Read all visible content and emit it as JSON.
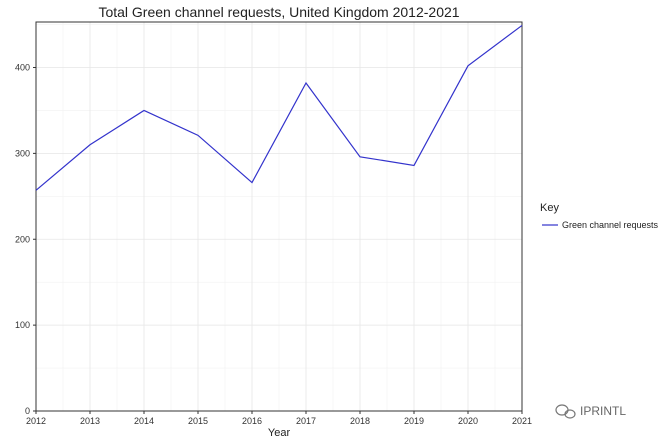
{
  "chart_data": {
    "type": "line",
    "title": "Total Green channel requests, United Kingdom 2012-2021",
    "xlabel": "Year",
    "ylabel": "",
    "x": [
      2012,
      2013,
      2014,
      2015,
      2016,
      2017,
      2018,
      2019,
      2020,
      2021
    ],
    "series": [
      {
        "name": "Green channel requests",
        "color": "#3333cc",
        "values": [
          257,
          310,
          350,
          321,
          266,
          382,
          296,
          286,
          402,
          449
        ]
      }
    ],
    "xlim": [
      2012,
      2021
    ],
    "ylim": [
      0,
      453
    ],
    "yticks": [
      0,
      100,
      200,
      300,
      400
    ],
    "grid": true,
    "legend": {
      "title": "Key",
      "placement": "right"
    }
  },
  "watermark": {
    "text": "IPRINTL",
    "icon": "wechat-icon"
  }
}
